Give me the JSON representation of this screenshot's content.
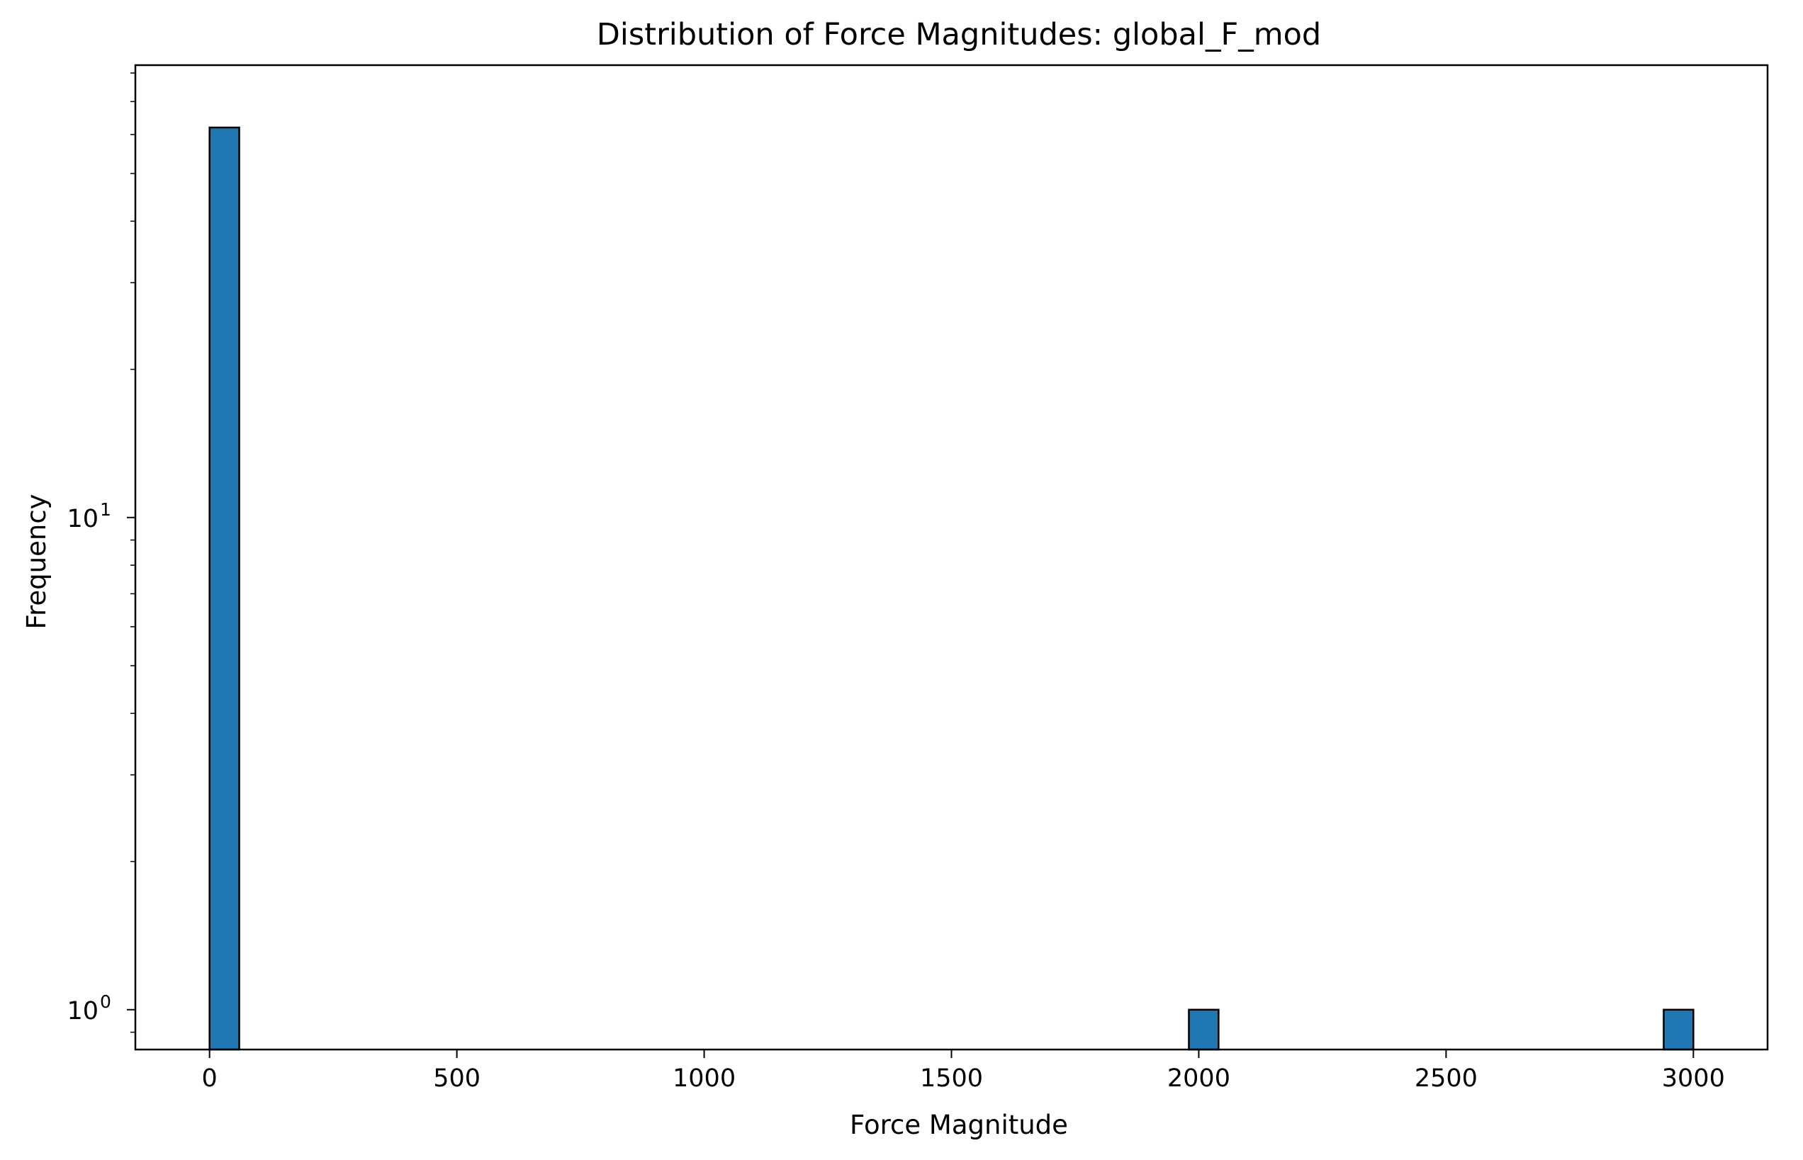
{
  "chart_data": {
    "type": "bar",
    "title": "Distribution of Force Magnitudes: global_F_mod",
    "xlabel": "Force Magnitude",
    "ylabel": "Frequency",
    "xlim": [
      -150,
      3150
    ],
    "ylim": [
      0.83,
      83
    ],
    "y_scale": "log",
    "grid": false,
    "legend": "none",
    "bar_color": "#1f77b4",
    "edge_color": "#000000",
    "x_ticks": [
      {
        "value": 0,
        "label": "0"
      },
      {
        "value": 500,
        "label": "500"
      },
      {
        "value": 1000,
        "label": "1000"
      },
      {
        "value": 1500,
        "label": "1500"
      },
      {
        "value": 2000,
        "label": "2000"
      },
      {
        "value": 2500,
        "label": "2500"
      },
      {
        "value": 3000,
        "label": "3000"
      }
    ],
    "y_major_ticks": [
      {
        "value": 1,
        "base": "10",
        "exp": "0"
      },
      {
        "value": 10,
        "base": "10",
        "exp": "1"
      }
    ],
    "bars": [
      {
        "x0": 0,
        "x1": 60,
        "count": 62
      },
      {
        "x0": 1980,
        "x1": 2040,
        "count": 1
      },
      {
        "x0": 2940,
        "x1": 3000,
        "count": 1
      }
    ]
  }
}
